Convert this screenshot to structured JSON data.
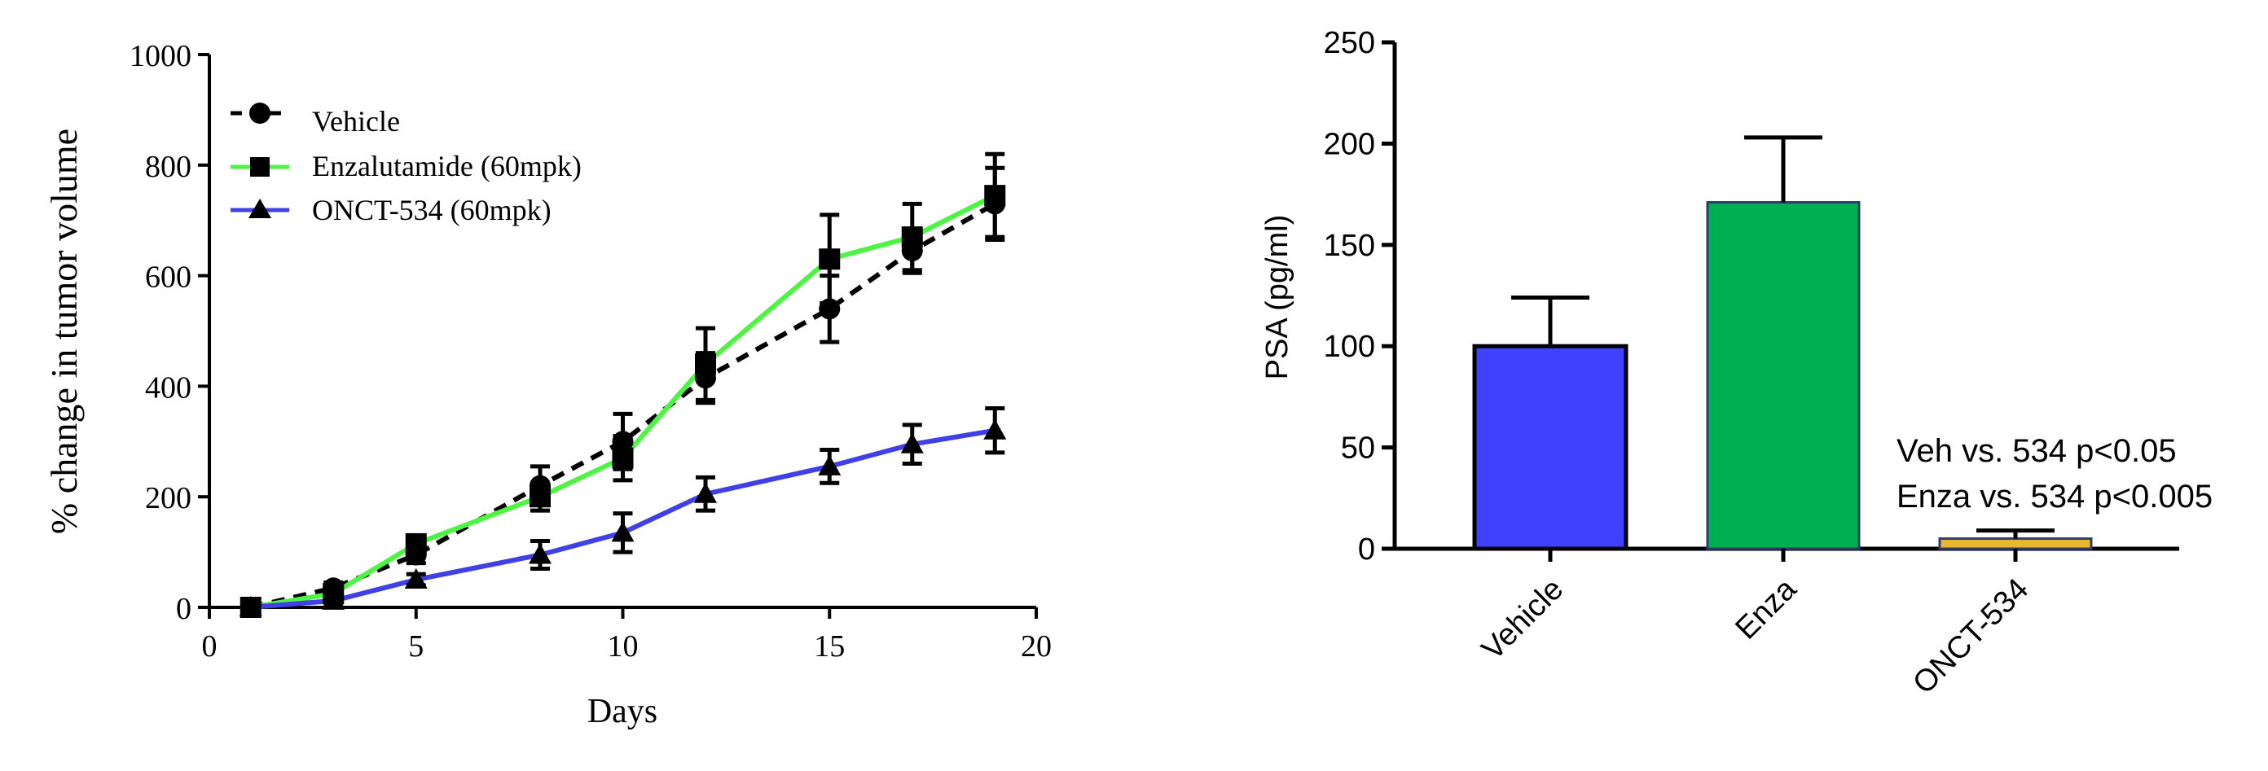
{
  "chart_data": [
    {
      "type": "line",
      "xlabel": "Days",
      "ylabel": "% change in tumor volume",
      "xlim": [
        0,
        20
      ],
      "ylim": [
        0,
        1000
      ],
      "xticks": [
        "0",
        "5",
        "10",
        "15",
        "20"
      ],
      "yticks": [
        "0",
        "200",
        "400",
        "600",
        "800",
        "1000"
      ],
      "legend_position": "top-left",
      "series": [
        {
          "name": "Vehicle",
          "color": "#000000",
          "line_style": "dashed",
          "marker": "circle",
          "x": [
            1,
            3,
            5,
            8,
            10,
            12,
            15,
            17,
            19
          ],
          "values": [
            0,
            35,
            95,
            220,
            300,
            415,
            540,
            645,
            730
          ],
          "errors": [
            0,
            10,
            15,
            35,
            50,
            45,
            60,
            40,
            65
          ]
        },
        {
          "name": "Enzalutamide (60mpk)",
          "color": "#4cf542",
          "line_style": "solid",
          "marker": "square",
          "x": [
            1,
            3,
            5,
            8,
            10,
            12,
            15,
            17,
            19
          ],
          "values": [
            0,
            25,
            115,
            200,
            270,
            440,
            630,
            670,
            745
          ],
          "errors": [
            0,
            10,
            12,
            25,
            40,
            65,
            80,
            60,
            75
          ]
        },
        {
          "name": "ONCT-534 (60mpk)",
          "color": "#4040e6",
          "line_style": "solid",
          "marker": "triangle",
          "x": [
            1,
            3,
            5,
            8,
            10,
            12,
            15,
            17,
            19
          ],
          "values": [
            0,
            12,
            50,
            95,
            135,
            205,
            255,
            295,
            320
          ],
          "errors": [
            0,
            5,
            10,
            25,
            35,
            30,
            30,
            35,
            40
          ]
        }
      ]
    },
    {
      "type": "bar",
      "ylabel": "PSA (pg/ml)",
      "xlabel": "",
      "ylim": [
        0,
        250
      ],
      "yticks": [
        "0",
        "50",
        "100",
        "150",
        "200",
        "250"
      ],
      "categories": [
        "Vehicle",
        "Enza",
        "ONCT-534"
      ],
      "values": [
        100,
        171,
        5
      ],
      "errors": [
        24,
        32,
        4
      ],
      "colors": [
        "#4040ff",
        "#00b050",
        "#e8b830"
      ],
      "annotations": [
        "Veh vs. 534 p<0.05",
        "Enza vs. 534 p<0.005"
      ]
    }
  ]
}
